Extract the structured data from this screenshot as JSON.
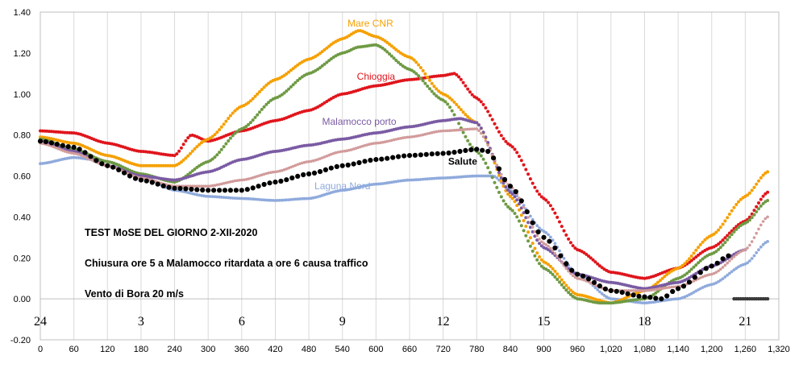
{
  "chart_data": {
    "type": "scatter",
    "xlim": [
      0,
      1320
    ],
    "ylim": [
      -0.2,
      1.4
    ],
    "x_ticks": [
      0,
      60,
      120,
      180,
      240,
      300,
      360,
      420,
      480,
      540,
      600,
      660,
      720,
      780,
      840,
      900,
      960,
      1020,
      1080,
      1140,
      1200,
      1260,
      1320
    ],
    "x_tick_labels": [
      "0",
      "60",
      "120",
      "180",
      "240",
      "300",
      "360",
      "420",
      "480",
      "540",
      "600",
      "660",
      "720",
      "780",
      "840",
      "900",
      "960",
      "1,020",
      "1,080",
      "1,140",
      "1,200",
      "1,260",
      "1,320"
    ],
    "y_ticks": [
      -0.2,
      0.0,
      0.2,
      0.4,
      0.6,
      0.8,
      1.0,
      1.2,
      1.4
    ],
    "y_tick_labels": [
      "-0.20",
      "0.00",
      "0.20",
      "0.40",
      "0.60",
      "0.80",
      "1.00",
      "1.20",
      "1.40"
    ],
    "grid": "vertical",
    "hour_labels": [
      {
        "x": 0,
        "label": "24"
      },
      {
        "x": 180,
        "label": "3"
      },
      {
        "x": 360,
        "label": "6"
      },
      {
        "x": 540,
        "label": "9"
      },
      {
        "x": 720,
        "label": "12"
      },
      {
        "x": 900,
        "label": "15"
      },
      {
        "x": 1080,
        "label": "18"
      },
      {
        "x": 1260,
        "label": "21"
      }
    ],
    "annotations": [
      "TEST MoSE DEL GIORNO 2-XII-2020",
      "Chiusura ore 5 a Malamocco ritardata a ore 6 causa traffico",
      "Vento di Bora 20 m/s"
    ],
    "series": [
      {
        "name": "Laguna Nord",
        "color": "#8faadc",
        "size": 1.9,
        "label_at": [
          1,
          0.56
        ],
        "points": [
          [
            0,
            0.66
          ],
          [
            60,
            0.69
          ],
          [
            120,
            0.67
          ],
          [
            180,
            0.6
          ],
          [
            240,
            0.53
          ],
          [
            300,
            0.5
          ],
          [
            360,
            0.49
          ],
          [
            420,
            0.48
          ],
          [
            480,
            0.49
          ],
          [
            540,
            0.53
          ],
          [
            600,
            0.56
          ],
          [
            660,
            0.58
          ],
          [
            720,
            0.59
          ],
          [
            780,
            0.6
          ],
          [
            810,
            0.6
          ],
          [
            840,
            0.53
          ],
          [
            900,
            0.33
          ],
          [
            960,
            0.12
          ],
          [
            1020,
            0.0
          ],
          [
            1080,
            -0.02
          ],
          [
            1140,
            0.0
          ],
          [
            1200,
            0.07
          ],
          [
            1260,
            0.17
          ],
          [
            1300,
            0.28
          ]
        ]
      },
      {
        "name": "Chioggia",
        "color": "#e0151c",
        "size": 2.0,
        "label_at": [
          1,
          0.96
        ],
        "points": [
          [
            0,
            0.82
          ],
          [
            60,
            0.81
          ],
          [
            120,
            0.76
          ],
          [
            180,
            0.72
          ],
          [
            240,
            0.7
          ],
          [
            270,
            0.8
          ],
          [
            300,
            0.77
          ],
          [
            360,
            0.82
          ],
          [
            420,
            0.87
          ],
          [
            480,
            0.92
          ],
          [
            540,
            1.0
          ],
          [
            600,
            1.04
          ],
          [
            660,
            1.07
          ],
          [
            720,
            1.09
          ],
          [
            740,
            1.1
          ],
          [
            780,
            0.98
          ],
          [
            840,
            0.75
          ],
          [
            900,
            0.49
          ],
          [
            960,
            0.24
          ],
          [
            1020,
            0.13
          ],
          [
            1080,
            0.1
          ],
          [
            1140,
            0.15
          ],
          [
            1200,
            0.25
          ],
          [
            1260,
            0.38
          ],
          [
            1300,
            0.52
          ]
        ]
      },
      {
        "name": "Mare CNR",
        "color": "#f5a000",
        "size": 2.0,
        "label_at": [
          1,
          1.3
        ],
        "points": [
          [
            0,
            0.79
          ],
          [
            60,
            0.76
          ],
          [
            120,
            0.7
          ],
          [
            180,
            0.65
          ],
          [
            240,
            0.65
          ],
          [
            300,
            0.78
          ],
          [
            360,
            0.94
          ],
          [
            420,
            1.07
          ],
          [
            480,
            1.17
          ],
          [
            540,
            1.27
          ],
          [
            570,
            1.31
          ],
          [
            600,
            1.28
          ],
          [
            660,
            1.18
          ],
          [
            720,
            1.0
          ],
          [
            780,
            0.86
          ],
          [
            840,
            0.5
          ],
          [
            900,
            0.18
          ],
          [
            960,
            0.02
          ],
          [
            1020,
            -0.02
          ],
          [
            1080,
            0.04
          ],
          [
            1140,
            0.15
          ],
          [
            1200,
            0.31
          ],
          [
            1260,
            0.5
          ],
          [
            1300,
            0.62
          ]
        ]
      },
      {
        "name": "",
        "color": "#6e9a44",
        "size": 2.0,
        "points": [
          [
            0,
            0.78
          ],
          [
            60,
            0.73
          ],
          [
            120,
            0.67
          ],
          [
            180,
            0.61
          ],
          [
            240,
            0.57
          ],
          [
            300,
            0.67
          ],
          [
            360,
            0.83
          ],
          [
            420,
            0.98
          ],
          [
            480,
            1.1
          ],
          [
            540,
            1.2
          ],
          [
            570,
            1.23
          ],
          [
            600,
            1.24
          ],
          [
            660,
            1.12
          ],
          [
            720,
            0.97
          ],
          [
            780,
            0.72
          ],
          [
            840,
            0.44
          ],
          [
            900,
            0.15
          ],
          [
            960,
            0.0
          ],
          [
            1000,
            -0.02
          ],
          [
            1020,
            -0.02
          ],
          [
            1080,
            0.0
          ],
          [
            1140,
            0.1
          ],
          [
            1200,
            0.22
          ],
          [
            1260,
            0.37
          ],
          [
            1300,
            0.48
          ]
        ]
      },
      {
        "name": "Malamocco  porto",
        "color": "#7a5ba3",
        "size": 2.0,
        "label_at": [
          1,
          0.86
        ],
        "points": [
          [
            0,
            0.77
          ],
          [
            60,
            0.72
          ],
          [
            120,
            0.65
          ],
          [
            180,
            0.6
          ],
          [
            240,
            0.58
          ],
          [
            300,
            0.62
          ],
          [
            360,
            0.68
          ],
          [
            420,
            0.72
          ],
          [
            480,
            0.75
          ],
          [
            540,
            0.78
          ],
          [
            600,
            0.81
          ],
          [
            660,
            0.84
          ],
          [
            720,
            0.87
          ],
          [
            750,
            0.88
          ],
          [
            780,
            0.86
          ],
          [
            840,
            0.52
          ],
          [
            900,
            0.25
          ],
          [
            960,
            0.12
          ],
          [
            1020,
            0.08
          ],
          [
            1080,
            0.05
          ],
          [
            1140,
            0.08
          ],
          [
            1200,
            0.16
          ],
          [
            1260,
            0.24
          ]
        ]
      },
      {
        "name": "",
        "color": "#d29b9b",
        "size": 1.8,
        "points": [
          [
            0,
            0.76
          ],
          [
            60,
            0.71
          ],
          [
            120,
            0.65
          ],
          [
            180,
            0.59
          ],
          [
            240,
            0.55
          ],
          [
            300,
            0.55
          ],
          [
            360,
            0.58
          ],
          [
            420,
            0.62
          ],
          [
            480,
            0.67
          ],
          [
            540,
            0.72
          ],
          [
            600,
            0.76
          ],
          [
            660,
            0.79
          ],
          [
            720,
            0.82
          ],
          [
            780,
            0.83
          ],
          [
            840,
            0.55
          ],
          [
            900,
            0.27
          ],
          [
            960,
            0.1
          ],
          [
            1020,
            0.04
          ],
          [
            1080,
            0.04
          ],
          [
            1140,
            0.06
          ],
          [
            1200,
            0.12
          ],
          [
            1260,
            0.24
          ],
          [
            1300,
            0.4
          ]
        ]
      },
      {
        "name": "Salute",
        "color": "#000000",
        "size": 3.1,
        "label_at": [
          1,
          0.67
        ],
        "points": [
          [
            0,
            0.77
          ],
          [
            60,
            0.74
          ],
          [
            120,
            0.65
          ],
          [
            180,
            0.58
          ],
          [
            240,
            0.54
          ],
          [
            300,
            0.53
          ],
          [
            360,
            0.53
          ],
          [
            420,
            0.57
          ],
          [
            480,
            0.61
          ],
          [
            540,
            0.65
          ],
          [
            600,
            0.68
          ],
          [
            660,
            0.7
          ],
          [
            720,
            0.71
          ],
          [
            780,
            0.73
          ],
          [
            800,
            0.72
          ],
          [
            840,
            0.55
          ],
          [
            900,
            0.3
          ],
          [
            960,
            0.12
          ],
          [
            1020,
            0.04
          ],
          [
            1080,
            0.01
          ],
          [
            1110,
            0.0
          ],
          [
            1140,
            0.05
          ],
          [
            1200,
            0.16
          ],
          [
            1230,
            0.21
          ]
        ]
      },
      {
        "name": "",
        "color": "#3a3a3a",
        "size": 2.2,
        "points": [
          [
            1240,
            0.0
          ],
          [
            1300,
            0.0
          ]
        ]
      }
    ]
  }
}
